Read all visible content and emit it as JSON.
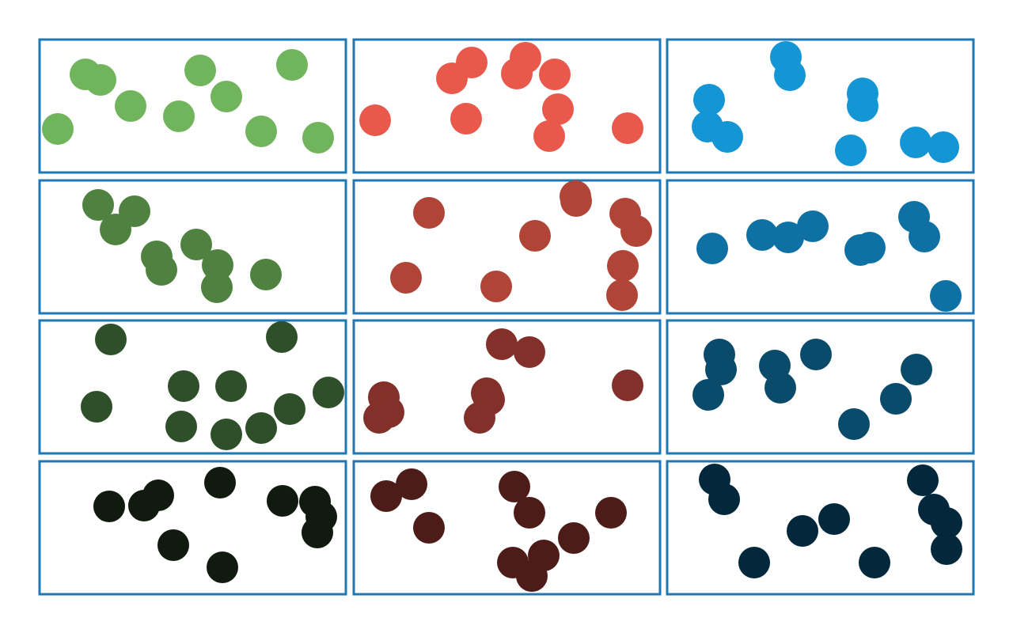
{
  "chart_data": {
    "type": "scatter",
    "title": "",
    "grid": {
      "rows": 4,
      "cols": 3
    },
    "border_color": "#1f77b4",
    "panels": [
      {
        "row": 0,
        "col": 0,
        "color": "#70b45c",
        "points": [
          [
            108,
            94
          ],
          [
            127,
            101
          ],
          [
            165,
            134
          ],
          [
            73,
            163
          ],
          [
            226,
            147
          ],
          [
            253,
            89
          ],
          [
            286,
            122
          ],
          [
            330,
            166
          ],
          [
            369,
            82
          ],
          [
            402,
            174
          ]
        ]
      },
      {
        "row": 0,
        "col": 1,
        "color": "#e8594c",
        "points": [
          [
            474,
            152
          ],
          [
            571,
            99
          ],
          [
            596,
            79
          ],
          [
            589,
            150
          ],
          [
            653,
            93
          ],
          [
            664,
            73
          ],
          [
            701,
            94
          ],
          [
            705,
            138
          ],
          [
            694,
            172
          ],
          [
            793,
            162
          ]
        ]
      },
      {
        "row": 0,
        "col": 2,
        "color": "#1596d4",
        "points": [
          [
            993,
            72
          ],
          [
            998,
            95
          ],
          [
            896,
            126
          ],
          [
            894,
            160
          ],
          [
            919,
            173
          ],
          [
            1090,
            118
          ],
          [
            1090,
            134
          ],
          [
            1075,
            190
          ],
          [
            1157,
            180
          ],
          [
            1192,
            186
          ]
        ]
      },
      {
        "row": 1,
        "col": 0,
        "color": "#4f8240",
        "points": [
          [
            124,
            259
          ],
          [
            170,
            267
          ],
          [
            146,
            290
          ],
          [
            198,
            324
          ],
          [
            204,
            341
          ],
          [
            248,
            309
          ],
          [
            275,
            335
          ],
          [
            274,
            363
          ],
          [
            336,
            347
          ]
        ]
      },
      {
        "row": 1,
        "col": 1,
        "color": "#b04437",
        "points": [
          [
            542,
            269
          ],
          [
            727,
            248
          ],
          [
            728,
            254
          ],
          [
            790,
            270
          ],
          [
            804,
            292
          ],
          [
            676,
            298
          ],
          [
            787,
            336
          ],
          [
            786,
            373
          ],
          [
            513,
            351
          ],
          [
            627,
            362
          ]
        ]
      },
      {
        "row": 1,
        "col": 2,
        "color": "#0f70a3",
        "points": [
          [
            900,
            314
          ],
          [
            963,
            297
          ],
          [
            996,
            300
          ],
          [
            1027,
            286
          ],
          [
            1087,
            316
          ],
          [
            1099,
            313
          ],
          [
            1155,
            274
          ],
          [
            1168,
            299
          ],
          [
            1195,
            374
          ]
        ]
      },
      {
        "row": 2,
        "col": 0,
        "color": "#2f4f2a",
        "points": [
          [
            140,
            429
          ],
          [
            356,
            426
          ],
          [
            122,
            514
          ],
          [
            232,
            488
          ],
          [
            292,
            488
          ],
          [
            229,
            539
          ],
          [
            286,
            549
          ],
          [
            330,
            541
          ],
          [
            366,
            517
          ],
          [
            415,
            496
          ]
        ]
      },
      {
        "row": 2,
        "col": 1,
        "color": "#823029",
        "points": [
          [
            634,
            435
          ],
          [
            669,
            445
          ],
          [
            485,
            502
          ],
          [
            491,
            521
          ],
          [
            479,
            528
          ],
          [
            615,
            497
          ],
          [
            618,
            505
          ],
          [
            606,
            528
          ],
          [
            793,
            487
          ]
        ]
      },
      {
        "row": 2,
        "col": 2,
        "color": "#0a4a6b",
        "points": [
          [
            909,
            448
          ],
          [
            911,
            467
          ],
          [
            895,
            499
          ],
          [
            979,
            462
          ],
          [
            986,
            490
          ],
          [
            1031,
            448
          ],
          [
            1158,
            467
          ],
          [
            1132,
            504
          ],
          [
            1079,
            536
          ]
        ]
      },
      {
        "row": 3,
        "col": 0,
        "color": "#101a0e",
        "points": [
          [
            138,
            640
          ],
          [
            182,
            639
          ],
          [
            200,
            626
          ],
          [
            278,
            610
          ],
          [
            219,
            689
          ],
          [
            281,
            717
          ],
          [
            357,
            633
          ],
          [
            398,
            634
          ],
          [
            406,
            653
          ],
          [
            401,
            673
          ]
        ]
      },
      {
        "row": 3,
        "col": 1,
        "color": "#4d1c18",
        "points": [
          [
            488,
            627
          ],
          [
            520,
            612
          ],
          [
            542,
            667
          ],
          [
            650,
            615
          ],
          [
            669,
            648
          ],
          [
            772,
            648
          ],
          [
            725,
            680
          ],
          [
            687,
            702
          ],
          [
            648,
            711
          ],
          [
            672,
            728
          ]
        ]
      },
      {
        "row": 3,
        "col": 2,
        "color": "#03273b",
        "points": [
          [
            903,
            606
          ],
          [
            915,
            631
          ],
          [
            1166,
            607
          ],
          [
            1180,
            644
          ],
          [
            1196,
            661
          ],
          [
            1196,
            694
          ],
          [
            1054,
            656
          ],
          [
            1014,
            671
          ],
          [
            953,
            711
          ],
          [
            1105,
            711
          ]
        ]
      }
    ]
  }
}
